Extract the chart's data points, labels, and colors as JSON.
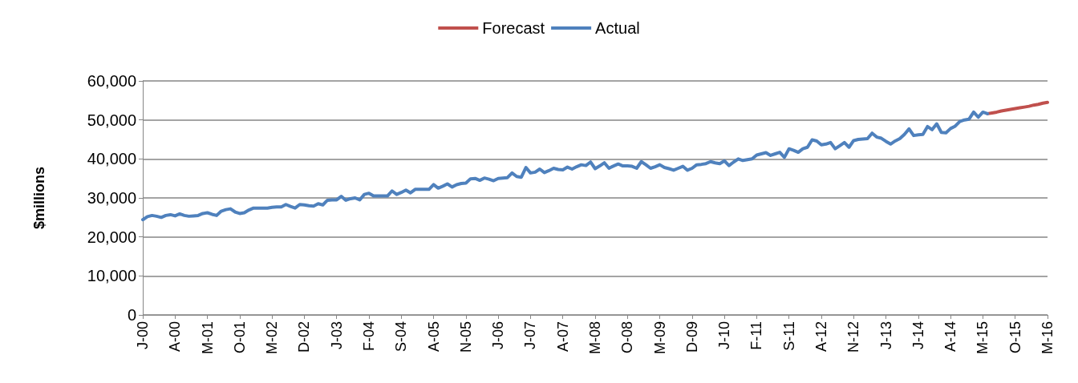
{
  "chart_data": {
    "type": "line",
    "ylabel": "$millions",
    "legend": "top",
    "grid": "y",
    "marker": "none",
    "line_style": "solid",
    "ylim": [
      0,
      60000
    ],
    "yticks": [
      0,
      {
        "value": 10000,
        "label": "10,000"
      },
      {
        "value": 20000,
        "label": "20,000"
      },
      {
        "value": 30000,
        "label": "30,000"
      },
      {
        "value": 40000,
        "label": "40,000"
      },
      {
        "value": 50000,
        "label": "50,000"
      },
      {
        "value": 60000,
        "label": "60,000"
      }
    ],
    "categories": [
      "J-00",
      null,
      null,
      null,
      null,
      null,
      null,
      "A-00",
      null,
      null,
      null,
      null,
      null,
      null,
      "M-01",
      null,
      null,
      null,
      null,
      null,
      null,
      "O-01",
      null,
      null,
      null,
      null,
      null,
      null,
      "M-02",
      null,
      null,
      null,
      null,
      null,
      null,
      "D-02",
      null,
      null,
      null,
      null,
      null,
      null,
      "J-03",
      null,
      null,
      null,
      null,
      null,
      null,
      "F-04",
      null,
      null,
      null,
      null,
      null,
      null,
      "S-04",
      null,
      null,
      null,
      null,
      null,
      null,
      "A-05",
      null,
      null,
      null,
      null,
      null,
      null,
      "N-05",
      null,
      null,
      null,
      null,
      null,
      null,
      "J-06",
      null,
      null,
      null,
      null,
      null,
      null,
      "J-07",
      null,
      null,
      null,
      null,
      null,
      null,
      "A-07",
      null,
      null,
      null,
      null,
      null,
      null,
      "M-08",
      null,
      null,
      null,
      null,
      null,
      null,
      "O-08",
      null,
      null,
      null,
      null,
      null,
      null,
      "M-09",
      null,
      null,
      null,
      null,
      null,
      null,
      "D-09",
      null,
      null,
      null,
      null,
      null,
      null,
      "J-10",
      null,
      null,
      null,
      null,
      null,
      null,
      "F-11",
      null,
      null,
      null,
      null,
      null,
      null,
      "S-11",
      null,
      null,
      null,
      null,
      null,
      null,
      "A-12",
      null,
      null,
      null,
      null,
      null,
      null,
      "N-12",
      null,
      null,
      null,
      null,
      null,
      null,
      "J-13",
      null,
      null,
      null,
      null,
      null,
      null,
      "J-14",
      null,
      null,
      null,
      null,
      null,
      null,
      "A-14",
      null,
      null,
      null,
      null,
      null,
      null,
      "M-15",
      null,
      null,
      null,
      null,
      null,
      null,
      "O-15",
      null,
      null,
      null,
      null,
      null,
      null,
      "M-16"
    ],
    "series": [
      {
        "name": "Forecast",
        "color": "#c0504d",
        "values": [
          null,
          null,
          null,
          null,
          null,
          null,
          null,
          null,
          null,
          null,
          null,
          null,
          null,
          null,
          null,
          null,
          null,
          null,
          null,
          null,
          null,
          null,
          null,
          null,
          null,
          null,
          null,
          null,
          null,
          null,
          null,
          null,
          null,
          null,
          null,
          null,
          null,
          null,
          null,
          null,
          null,
          null,
          null,
          null,
          null,
          null,
          null,
          null,
          null,
          null,
          null,
          null,
          null,
          null,
          null,
          null,
          null,
          null,
          null,
          null,
          null,
          null,
          null,
          null,
          null,
          null,
          null,
          null,
          null,
          null,
          null,
          null,
          null,
          null,
          null,
          null,
          null,
          null,
          null,
          null,
          null,
          null,
          null,
          null,
          null,
          null,
          null,
          null,
          null,
          null,
          null,
          null,
          null,
          null,
          null,
          null,
          null,
          null,
          null,
          null,
          null,
          null,
          null,
          null,
          null,
          null,
          null,
          null,
          null,
          null,
          null,
          null,
          null,
          null,
          null,
          null,
          null,
          null,
          null,
          null,
          null,
          null,
          null,
          null,
          null,
          null,
          null,
          null,
          null,
          null,
          null,
          null,
          null,
          null,
          null,
          null,
          null,
          null,
          null,
          null,
          null,
          null,
          null,
          null,
          null,
          null,
          null,
          null,
          null,
          null,
          null,
          null,
          null,
          null,
          null,
          null,
          null,
          null,
          null,
          null,
          null,
          null,
          null,
          null,
          null,
          null,
          null,
          null,
          null,
          null,
          null,
          null,
          null,
          null,
          null,
          null,
          null,
          null,
          null,
          null,
          null,
          null,
          null,
          51600,
          51800,
          52000,
          52300,
          52500,
          52700,
          52900,
          53100,
          53300,
          53500,
          53800,
          54000,
          54300,
          54500
        ]
      },
      {
        "name": "Actual",
        "color": "#4f81bd",
        "values": [
          24400,
          25200,
          25500,
          25300,
          25000,
          25500,
          25700,
          25400,
          25900,
          25500,
          25300,
          25400,
          25500,
          26000,
          26200,
          25800,
          25500,
          26600,
          27000,
          27200,
          26400,
          26000,
          26200,
          26900,
          27400,
          27400,
          27400,
          27400,
          27600,
          27700,
          27700,
          28300,
          27800,
          27400,
          28300,
          28200,
          28000,
          27900,
          28500,
          28200,
          29400,
          29500,
          29500,
          30400,
          29400,
          29800,
          30000,
          29500,
          30900,
          31200,
          30500,
          30500,
          30500,
          30500,
          31800,
          30900,
          31400,
          32000,
          31300,
          32200,
          32200,
          32200,
          32200,
          33400,
          32500,
          33000,
          33600,
          32800,
          33400,
          33700,
          33800,
          34900,
          35000,
          34500,
          35100,
          34800,
          34400,
          35000,
          35100,
          35200,
          36400,
          35500,
          35300,
          37800,
          36400,
          36600,
          37400,
          36500,
          37000,
          37600,
          37300,
          37200,
          37900,
          37400,
          38000,
          38500,
          38300,
          39200,
          37500,
          38200,
          39000,
          37600,
          38200,
          38700,
          38200,
          38200,
          38100,
          37600,
          39300,
          38500,
          37600,
          38000,
          38500,
          37800,
          37500,
          37100,
          37600,
          38100,
          37100,
          37600,
          38500,
          38600,
          38800,
          39300,
          39000,
          38800,
          39500,
          38300,
          39200,
          40000,
          39600,
          39800,
          40000,
          41000,
          41300,
          41600,
          40900,
          41300,
          41700,
          40400,
          42600,
          42200,
          41700,
          42600,
          43000,
          44900,
          44600,
          43600,
          43800,
          44200,
          42600,
          43400,
          44200,
          43000,
          44700,
          45000,
          45100,
          45200,
          46600,
          45600,
          45300,
          44500,
          43800,
          44600,
          45200,
          46300,
          47700,
          46000,
          46200,
          46300,
          48300,
          47500,
          49000,
          46800,
          46700,
          47800,
          48400,
          49600,
          50000,
          50200,
          52000,
          50700,
          52000,
          51600,
          null,
          null,
          null,
          null,
          null,
          null,
          null,
          null,
          null,
          null,
          null,
          null,
          null
        ]
      }
    ]
  }
}
